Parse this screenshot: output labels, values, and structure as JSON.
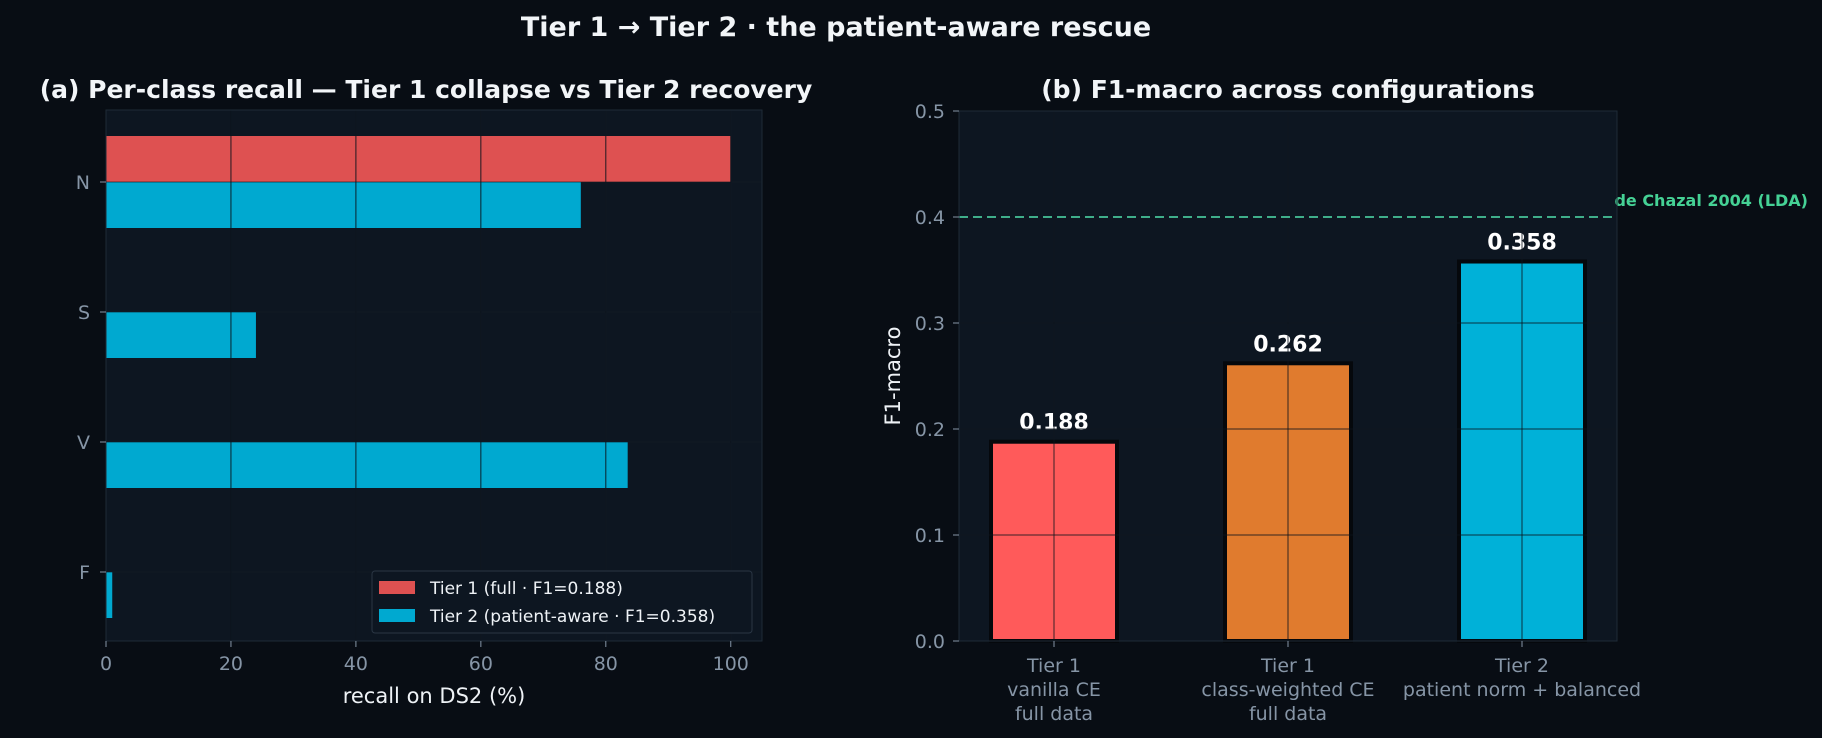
{
  "suptitle": "Tier 1 → Tier 2 · the patient-aware rescue",
  "colors": {
    "background": "#080d14",
    "axes_face": "#0d1621",
    "grid": "#1c2733",
    "tick_text": "#8695a6",
    "tier1_recall": "#de5151",
    "tier2_recall": "#00a9d0",
    "f1_vanilla": "#ff5a5a",
    "f1_weighted": "#e07b2e",
    "f1_tier2": "#00b1d8",
    "reference_line": "#3fae8a",
    "reference_text": "#45d195"
  },
  "chart_data": [
    {
      "type": "bar",
      "orientation": "horizontal",
      "title": "(a) Per-class recall — Tier 1 collapse vs Tier 2 recovery",
      "xlabel": "recall on DS2 (%)",
      "ylabel": "",
      "categories": [
        "N",
        "S",
        "V",
        "F"
      ],
      "xlim": [
        0,
        105
      ],
      "xticks": [
        0,
        20,
        40,
        60,
        80,
        100
      ],
      "grid": true,
      "legend_position": "lower-right",
      "series": [
        {
          "name": "Tier 1 (full · F1=0.188)",
          "values": [
            100,
            0,
            0,
            0
          ]
        },
        {
          "name": "Tier 2 (patient-aware · F1=0.358)",
          "values": [
            76,
            24,
            83.5,
            1
          ]
        }
      ]
    },
    {
      "type": "bar",
      "title": "(b) F1-macro across configurations",
      "xlabel": "",
      "ylabel": "F1-macro",
      "categories": [
        [
          "Tier 1",
          "vanilla CE",
          "full data"
        ],
        [
          "Tier 1",
          "class-weighted CE",
          "full data"
        ],
        [
          "Tier 2",
          "patient norm + balanced"
        ]
      ],
      "values": [
        0.188,
        0.262,
        0.358
      ],
      "value_labels": [
        "0.188",
        "0.262",
        "0.358"
      ],
      "ylim": [
        0,
        0.5
      ],
      "yticks": [
        "0.0",
        "0.1",
        "0.2",
        "0.3",
        "0.4",
        "0.5"
      ],
      "grid": true,
      "reference_line": {
        "value": 0.4,
        "label": "de Chazal 2004 (LDA)",
        "style": "dashed"
      }
    }
  ]
}
